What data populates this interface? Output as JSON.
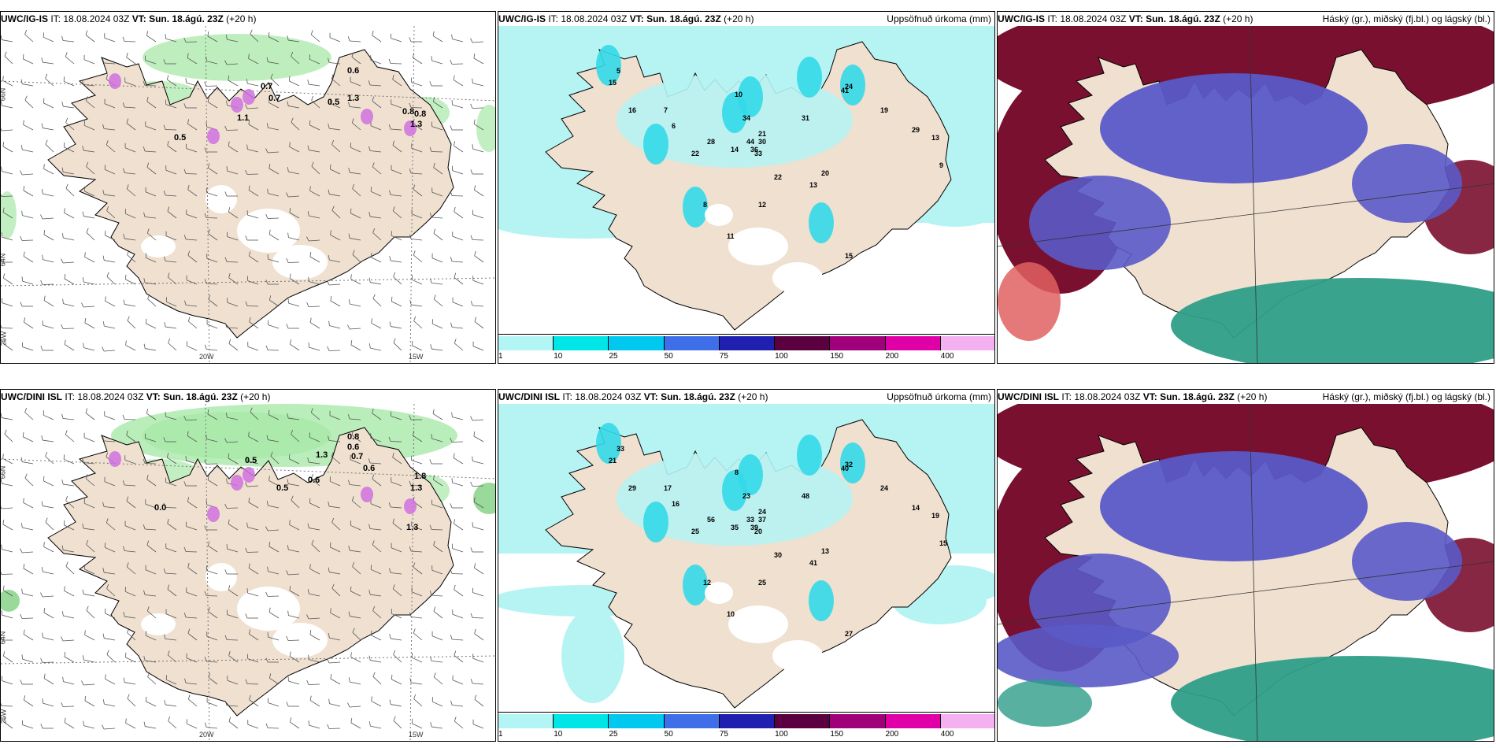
{
  "panels": [
    {
      "model": "UWC/IG-IS",
      "it_label": "IT:",
      "it": "18.08.2024 03Z",
      "vt_label": "VT:",
      "vt": "Sun. 18.ágú. 23Z",
      "lead": "(+20 h)",
      "right": ""
    },
    {
      "model": "UWC/IG-IS",
      "it_label": "IT:",
      "it": "18.08.2024 03Z",
      "vt_label": "VT:",
      "vt": "Sun. 18.ágú. 23Z",
      "lead": "(+20 h)",
      "right": "Uppsöfnuð úrkoma (mm)"
    },
    {
      "model": "UWC/IG-IS",
      "it_label": "IT:",
      "it": "18.08.2024 03Z",
      "vt_label": "VT:",
      "vt": "Sun. 18.ágú. 23Z",
      "lead": "(+20 h)",
      "right": "Háský (gr.), miðský (fj.bl.) og lágský (bl.)"
    },
    {
      "model": "UWC/DINI ISL",
      "it_label": "IT:",
      "it": "18.08.2024 03Z",
      "vt_label": "VT:",
      "vt": "Sun. 18.ágú. 23Z",
      "lead": "(+20 h)",
      "right": ""
    },
    {
      "model": "UWC/DINI ISL",
      "it_label": "IT:",
      "it": "18.08.2024 03Z",
      "vt_label": "VT:",
      "vt": "Sun. 18.ágú. 23Z",
      "lead": "(+20 h)",
      "right": "Uppsöfnuð úrkoma (mm)"
    },
    {
      "model": "UWC/DINI ISL",
      "it_label": "IT:",
      "it": "18.08.2024 03Z",
      "vt_label": "VT:",
      "vt": "Sun. 18.ágú. 23Z",
      "lead": "(+20 h)",
      "right": "Háský (gr.), miðský (fj.bl.) og lágský (bl.)"
    }
  ],
  "axes": {
    "lon_20": "20W",
    "lon_15": "15W",
    "lat_66": "66N",
    "lat_64": "64N",
    "lon_25": "25W"
  },
  "colorbar": {
    "labels": [
      "1",
      "10",
      "25",
      "50",
      "75",
      "100",
      "150",
      "200",
      "400"
    ],
    "colors": [
      "#b3f5f5",
      "#00e5e5",
      "#00c8ee",
      "#3f6fe8",
      "#2020b0",
      "#5a0040",
      "#a0007a",
      "#e000a8",
      "#f4b0f0"
    ]
  },
  "colors": {
    "land": "#efe0d0",
    "sea_precip_light": "#b6f3f3",
    "precip_cyan": "#33d9e8",
    "high_cloud": "#7a1030",
    "mid_cloud": "#5a5ac8",
    "low_cloud": "#2e9e88",
    "green": "#a8e8a8"
  },
  "annotations_wind_top": [
    "0.6",
    "1.3",
    "0.5",
    "0.7",
    "1.1",
    "0.7",
    "0.8",
    "0.8",
    "0.5",
    "1.3"
  ],
  "annotations_wind_bot": [
    "0.8",
    "0.6",
    "0.7",
    "1.3",
    "0.5",
    "0.6",
    "0.6",
    "0.5",
    "1.3",
    "1.8",
    "0.0",
    "1.3"
  ],
  "precip_top": [
    "15",
    "16",
    "34",
    "21",
    "44",
    "36",
    "31",
    "41",
    "24",
    "22",
    "33",
    "30",
    "19",
    "28",
    "14",
    "22",
    "13",
    "20",
    "12",
    "29",
    "13",
    "9",
    "15",
    "5",
    "8",
    "7",
    "6",
    "11",
    "10"
  ],
  "precip_bot": [
    "21",
    "29",
    "23",
    "24",
    "33",
    "39",
    "48",
    "40",
    "32",
    "25",
    "20",
    "37",
    "24",
    "56",
    "35",
    "30",
    "41",
    "13",
    "25",
    "14",
    "19",
    "15",
    "27",
    "33",
    "12",
    "17",
    "16",
    "10",
    "8"
  ]
}
